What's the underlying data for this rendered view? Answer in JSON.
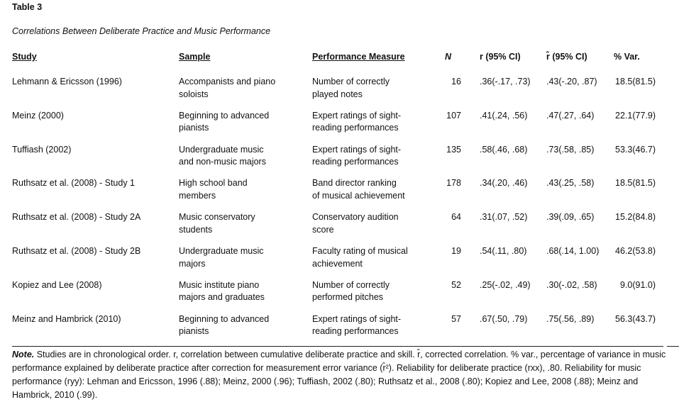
{
  "table": {
    "label": "Table 3",
    "caption": "Correlations Between Deliberate Practice and Music Performance",
    "headers": {
      "study": "Study",
      "sample": "Sample",
      "measure": "Performance Measure",
      "n": "N",
      "r": "r (95% CI)",
      "r_hat": "r̂ (95% CI)",
      "var": "% Var."
    },
    "rows": [
      {
        "study": "Lehmann & Ericsson (1996)",
        "sample": [
          "Accompanists and piano",
          "soloists"
        ],
        "measure": [
          "Number of correctly",
          "played notes"
        ],
        "n": "16",
        "r": ".36(-.17, .73)",
        "r_hat": ".43(-.20, .87)",
        "var": "18.5(81.5)"
      },
      {
        "study": "Meinz (2000)",
        "sample": [
          "Beginning to advanced",
          "pianists"
        ],
        "measure": [
          "Expert ratings of sight-",
          "reading performances"
        ],
        "n": "107",
        "r": ".41(.24, .56)",
        "r_hat": ".47(.27, .64)",
        "var": "22.1(77.9)"
      },
      {
        "study": "Tuffiash (2002)",
        "sample": [
          "Undergraduate music",
          "and non-music majors"
        ],
        "measure": [
          "Expert ratings of sight-",
          "reading performances"
        ],
        "n": "135",
        "r": ".58(.46, .68)",
        "r_hat": ".73(.58, .85)",
        "var": "53.3(46.7)"
      },
      {
        "study": "Ruthsatz et al. (2008) - Study 1",
        "sample": [
          "High school band",
          "members"
        ],
        "measure": [
          "Band director ranking",
          "of musical achievement"
        ],
        "n": "178",
        "r": ".34(.20, .46)",
        "r_hat": ".43(.25, .58)",
        "var": "18.5(81.5)"
      },
      {
        "study": "Ruthsatz et al. (2008) - Study 2A",
        "sample": [
          "Music conservatory",
          "students"
        ],
        "measure": [
          "Conservatory audition",
          "score"
        ],
        "n": "64",
        "r": ".31(.07, .52)",
        "r_hat": ".39(.09, .65)",
        "var": "15.2(84.8)"
      },
      {
        "study": "Ruthsatz et al. (2008) - Study 2B",
        "sample": [
          "Undergraduate music",
          "majors"
        ],
        "measure": [
          "Faculty rating of musical",
          "achievement"
        ],
        "n": "19",
        "r": ".54(.11, .80)",
        "r_hat": ".68(.14, 1.00)",
        "var": "46.2(53.8)"
      },
      {
        "study": "Kopiez and Lee (2008)",
        "sample": [
          "Music institute piano",
          "majors and graduates"
        ],
        "measure": [
          "Number of correctly",
          "performed pitches"
        ],
        "n": "52",
        "r": ".25(-.02, .49)",
        "r_hat": ".30(-.02, .58)",
        "var": "9.0(91.0)"
      },
      {
        "study": "Meinz and Hambrick (2010)",
        "sample": [
          "Beginning to advanced",
          "pianists"
        ],
        "measure": [
          "Expert ratings of sight-",
          "reading performances"
        ],
        "n": "57",
        "r": ".67(.50, .79)",
        "r_hat": ".75(.56, .89)",
        "var": "56.3(43.7)"
      }
    ],
    "note": {
      "label": "Note.",
      "text": " Studies are in chronological order. r, correlation between cumulative deliberate practice and skill. r̂, corrected correlation. % var., percentage of variance in music performance explained by deliberate practice after correction for measurement error variance (r̂²). Reliability for deliberate practice (rxx), .80. Reliability for music performance (ryy): Lehman and Ericsson, 1996 (.88); Meinz, 2000 (.96); Tuffiash, 2002 (.80); Ruthsatz et al., 2008 (.80); Kopiez and Lee, 2008 (.88); Meinz and Hambrick, 2010 (.99)."
    }
  }
}
